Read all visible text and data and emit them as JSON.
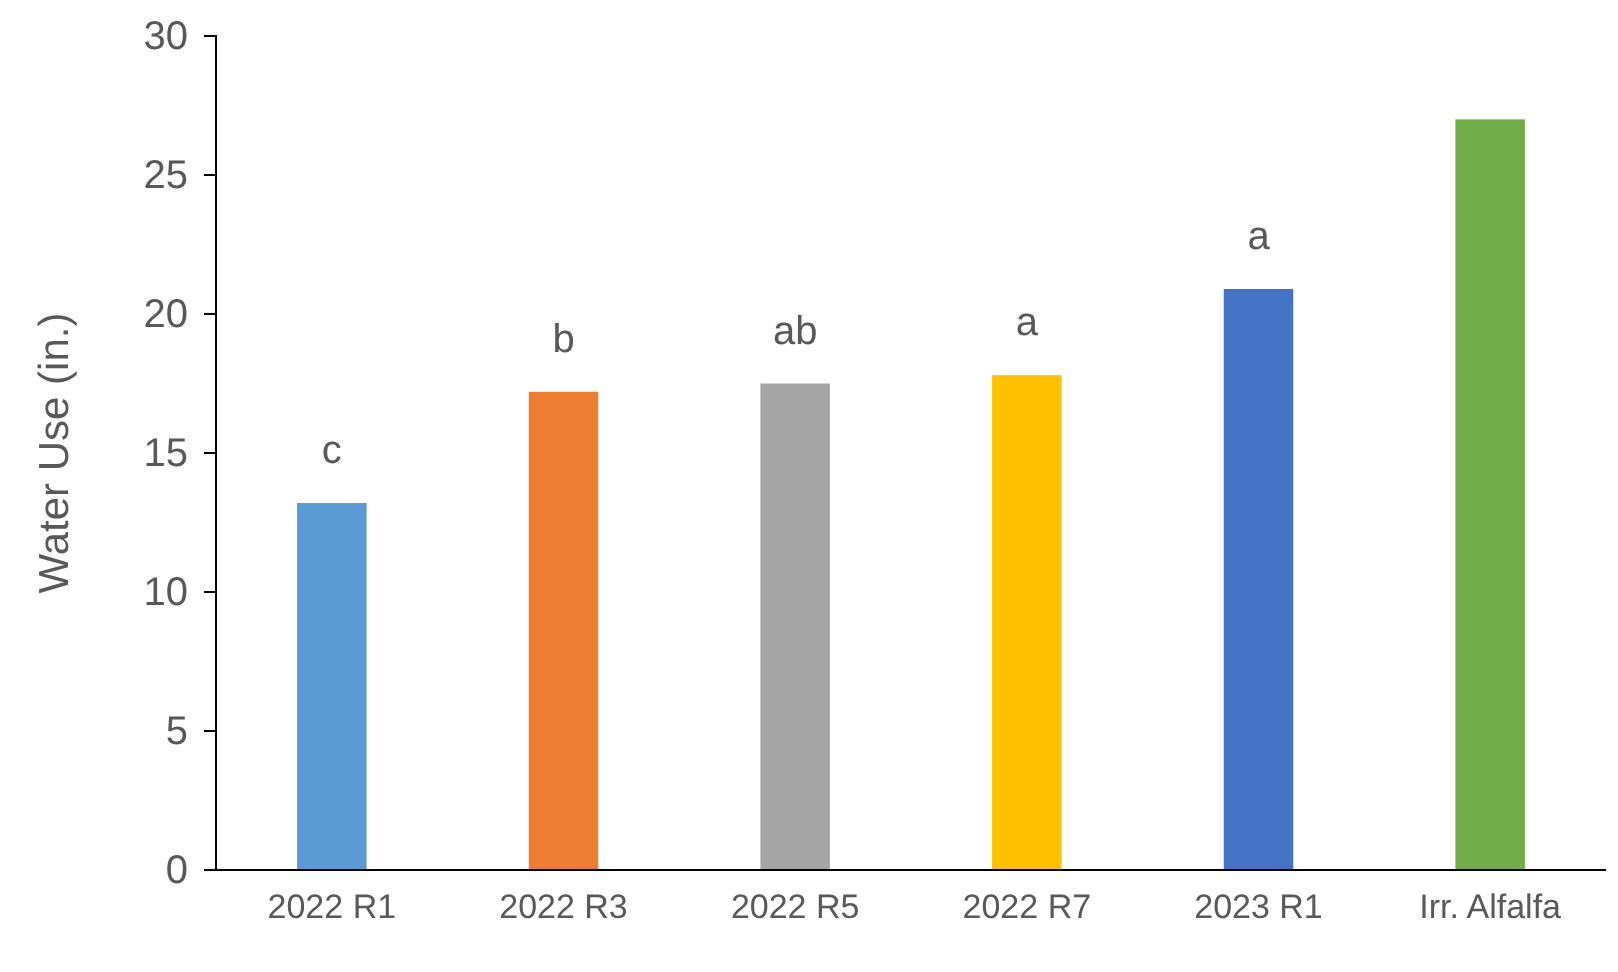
{
  "chart_data": {
    "type": "bar",
    "ylabel": "Water Use (in.)",
    "categories": [
      "2022 R1",
      "2022 R3",
      "2022 R5",
      "2022 R7",
      "2023 R1",
      "Irr. Alfalfa"
    ],
    "values": [
      13.2,
      17.2,
      17.5,
      17.8,
      20.9,
      27.0
    ],
    "colors": [
      "#5b9bd5",
      "#ed7d31",
      "#a5a5a5",
      "#ffc000",
      "#4472c4",
      "#70ad47"
    ],
    "ylim": [
      0,
      30
    ],
    "yticks": [
      0,
      5,
      10,
      15,
      20,
      25,
      30
    ],
    "grid": false,
    "annotations": [
      {
        "text": "c",
        "x": "2022 R1",
        "y": 13.2
      },
      {
        "text": "b",
        "x": "2022 R3",
        "y": 17.2
      },
      {
        "text": "ab",
        "x": "2022 R5",
        "y": 17.5
      },
      {
        "text": "a",
        "x": "2022 R7",
        "y": 17.8
      },
      {
        "text": "a",
        "x": "2023 R1",
        "y": 20.9
      }
    ]
  }
}
